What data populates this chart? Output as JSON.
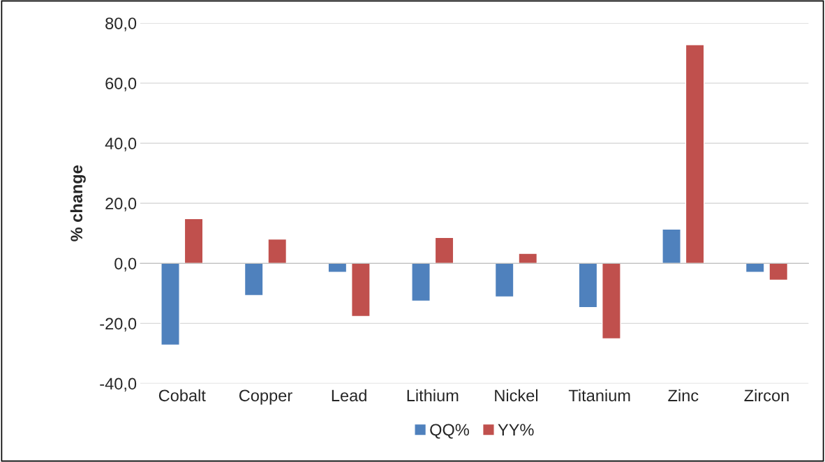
{
  "chart_data": {
    "type": "bar",
    "ylabel": "% change",
    "categories": [
      "Cobalt",
      "Copper",
      "Lead",
      "Lithium",
      "Nickel",
      "Titanium",
      "Zinc",
      "Zircon"
    ],
    "series": [
      {
        "name": "QQ%",
        "color": "#4f81bd",
        "values": [
          -27.2,
          -10.7,
          -3.0,
          -12.6,
          -11.2,
          -14.7,
          11.4,
          -3.0
        ]
      },
      {
        "name": "YY%",
        "color": "#c0504d",
        "values": [
          14.9,
          8.1,
          -17.7,
          8.6,
          3.3,
          -25.1,
          72.8,
          -5.6
        ]
      }
    ],
    "ylim": [
      -40,
      80
    ],
    "yticks": [
      {
        "value": -40,
        "label": "-40,0"
      },
      {
        "value": -20,
        "label": "-20,0"
      },
      {
        "value": 0,
        "label": "0,0"
      },
      {
        "value": 20,
        "label": "20,0"
      },
      {
        "value": 40,
        "label": "40,0"
      },
      {
        "value": 60,
        "label": "60,0"
      },
      {
        "value": 80,
        "label": "80,0"
      }
    ],
    "grid": "y",
    "legend": "bottom"
  }
}
